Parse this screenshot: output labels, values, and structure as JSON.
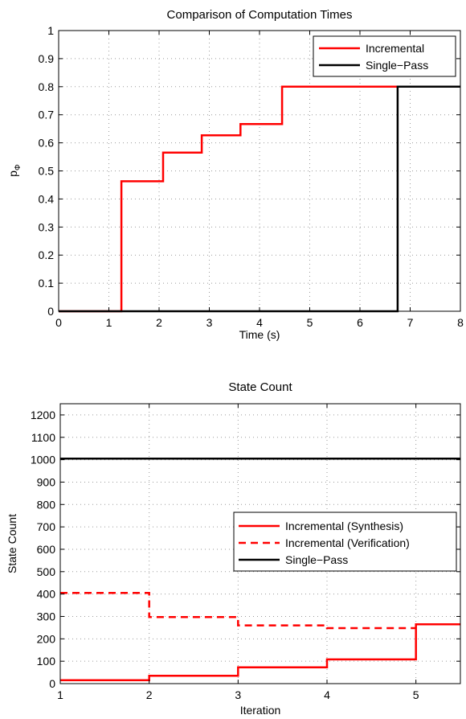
{
  "chart_data": [
    {
      "type": "line",
      "title": "Comparison of Computation Times",
      "xlabel": "Time (s)",
      "ylabel_base": "p",
      "ylabel_sub": "Φ",
      "xlim": [
        0,
        8
      ],
      "ylim": [
        0,
        1
      ],
      "x_ticks": [
        "0",
        "1",
        "2",
        "3",
        "4",
        "5",
        "6",
        "7",
        "8"
      ],
      "y_ticks": [
        "0",
        "0.1",
        "0.2",
        "0.3",
        "0.4",
        "0.5",
        "0.6",
        "0.7",
        "0.8",
        "0.9",
        "1"
      ],
      "grid": true,
      "legend_position": "top-right",
      "series": [
        {
          "name": "Incremental",
          "color": "#ff0000",
          "style": "solid",
          "step": true,
          "points": [
            [
              0,
              0
            ],
            [
              1.25,
              0
            ],
            [
              1.25,
              0.463
            ],
            [
              2.08,
              0.463
            ],
            [
              2.08,
              0.565
            ],
            [
              2.85,
              0.565
            ],
            [
              2.85,
              0.627
            ],
            [
              3.62,
              0.627
            ],
            [
              3.62,
              0.667
            ],
            [
              4.45,
              0.667
            ],
            [
              4.45,
              0.8
            ],
            [
              8,
              0.8
            ]
          ]
        },
        {
          "name": "Single−Pass",
          "color": "#000000",
          "style": "solid",
          "step": true,
          "points": [
            [
              0,
              0
            ],
            [
              6.75,
              0
            ],
            [
              6.75,
              0.8
            ],
            [
              8,
              0.8
            ]
          ]
        }
      ]
    },
    {
      "type": "line",
      "title": "State Count",
      "xlabel": "Iteration",
      "ylabel": "State Count",
      "xlim": [
        1,
        5.5
      ],
      "ylim": [
        0,
        1250
      ],
      "x_ticks": [
        "1",
        "2",
        "3",
        "4",
        "5"
      ],
      "y_ticks": [
        "0",
        "100",
        "200",
        "300",
        "400",
        "500",
        "600",
        "700",
        "800",
        "900",
        "1000",
        "1100",
        "1200"
      ],
      "grid": true,
      "legend_position": "center-right",
      "series": [
        {
          "name": "Incremental (Synthesis)",
          "color": "#ff0000",
          "style": "solid",
          "step": true,
          "points": [
            [
              1,
              15
            ],
            [
              2,
              15
            ],
            [
              2,
              35
            ],
            [
              3,
              35
            ],
            [
              3,
              73
            ],
            [
              4,
              73
            ],
            [
              4,
              108
            ],
            [
              5,
              108
            ],
            [
              5,
              265
            ],
            [
              5.5,
              265
            ]
          ]
        },
        {
          "name": "Incremental (Verification)",
          "color": "#ff0000",
          "style": "dashed",
          "step": true,
          "points": [
            [
              1,
              405
            ],
            [
              2,
              405
            ],
            [
              2,
              297
            ],
            [
              3,
              297
            ],
            [
              3,
              260
            ],
            [
              4,
              260
            ],
            [
              4,
              248
            ],
            [
              5,
              248
            ]
          ]
        },
        {
          "name": "Single−Pass",
          "color": "#000000",
          "style": "solid",
          "step": true,
          "points": [
            [
              1,
              1005
            ],
            [
              5.5,
              1005
            ]
          ]
        }
      ]
    }
  ]
}
